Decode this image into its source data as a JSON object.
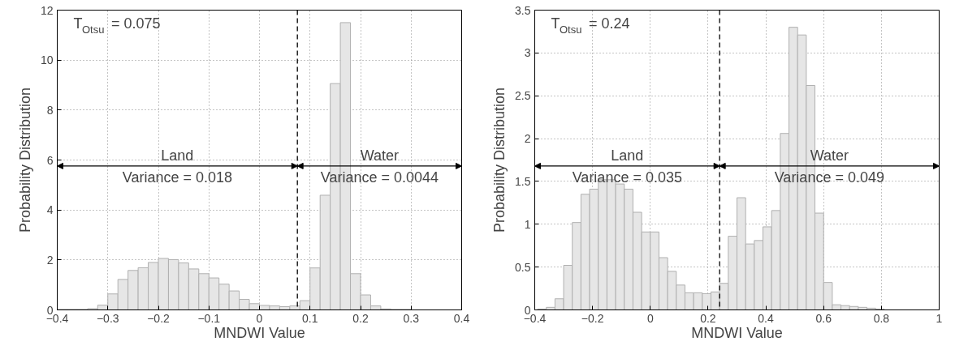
{
  "chart_data": [
    {
      "type": "histogram",
      "xlabel": "MNDWI Value",
      "ylabel": "Probability Distribution",
      "color": "#e6e6e6",
      "bins": [
        -0.4,
        -0.38,
        -0.36,
        -0.34,
        -0.32,
        -0.3,
        -0.28,
        -0.26,
        -0.24,
        -0.22,
        -0.2,
        -0.18,
        -0.16,
        -0.14,
        -0.12,
        -0.1,
        -0.08,
        -0.06,
        -0.04,
        -0.02,
        0,
        0.02,
        0.04,
        0.06,
        0.08,
        0.1,
        0.12,
        0.14,
        0.16,
        0.18,
        0.2,
        0.22,
        0.24,
        0.26,
        0.28,
        0.3
      ],
      "values": [
        0.02,
        0.02,
        0.02,
        0.05,
        0.19,
        0.64,
        1.22,
        1.58,
        1.69,
        1.9,
        2.06,
        2.01,
        1.88,
        1.64,
        1.45,
        1.28,
        1.03,
        0.76,
        0.42,
        0.25,
        0.18,
        0.16,
        0.13,
        0.16,
        0.37,
        1.68,
        4.59,
        9.06,
        11.5,
        1.45,
        0.6,
        0.16,
        0.04,
        0.02,
        0.02
      ],
      "xlim": [
        -0.4,
        0.4
      ],
      "ylim": [
        0,
        12
      ],
      "xticks": [
        {
          "value": -0.4,
          "label": "−0.4"
        },
        {
          "value": -0.3,
          "label": "−0.3"
        },
        {
          "value": -0.2,
          "label": "−0.2"
        },
        {
          "value": -0.1,
          "label": "−0.1"
        },
        0,
        0.1,
        0.2,
        0.3,
        0.4
      ],
      "yticks": [
        0,
        2,
        4,
        6,
        8,
        10,
        12
      ],
      "grid": true,
      "ref_lines": [
        {
          "axis": "x",
          "value": 0.075,
          "line_style": "dashed"
        }
      ],
      "annotations": [
        "T$_{Otsu}$ = 0.075",
        "Land",
        "Variance = 0.018",
        "Water",
        "Variance = 0.0044"
      ]
    },
    {
      "type": "histogram",
      "xlabel": "MNDWI Value",
      "ylabel": "Probability Distribution",
      "color": "#e6e6e6",
      "bins": [
        -0.39,
        -0.36,
        -0.33,
        -0.3,
        -0.27,
        -0.24,
        -0.21,
        -0.18,
        -0.15,
        -0.12,
        -0.09,
        -0.06,
        -0.03,
        0,
        0.03,
        0.06,
        0.09,
        0.12,
        0.15,
        0.18,
        0.21,
        0.24,
        0.27,
        0.3,
        0.33,
        0.36,
        0.39,
        0.42,
        0.45,
        0.48,
        0.51,
        0.54,
        0.57,
        0.6,
        0.63,
        0.66,
        0.69,
        0.72,
        0.75,
        0.78,
        0.81
      ],
      "values": [
        0.01,
        0.03,
        0.13,
        0.52,
        1.02,
        1.35,
        1.41,
        1.52,
        1.52,
        1.47,
        1.41,
        1.14,
        0.91,
        0.91,
        0.61,
        0.45,
        0.29,
        0.2,
        0.2,
        0.19,
        0.21,
        0.31,
        0.86,
        1.31,
        0.77,
        0.81,
        0.97,
        1.16,
        2.06,
        3.3,
        3.21,
        2.62,
        1.13,
        0.32,
        0.06,
        0.05,
        0.04,
        0.03,
        0.02,
        0.01
      ],
      "xlim": [
        -0.4,
        1
      ],
      "ylim": [
        0,
        3.5
      ],
      "xticks": [
        {
          "value": -0.4,
          "label": "−0.4"
        },
        {
          "value": -0.2,
          "label": "−0.2"
        },
        0,
        0.2,
        0.4,
        0.6,
        0.8,
        1
      ],
      "yticks": [
        0,
        0.5,
        1,
        1.5,
        2,
        2.5,
        3,
        3.5
      ],
      "grid": true,
      "ref_lines": [
        {
          "axis": "x",
          "value": 0.24,
          "line_style": "dashed"
        }
      ],
      "annotations": [
        "T$_{Otsu}$ = 0.24",
        "Land",
        "Variance = 0.035",
        "Water",
        "Variance = 0.049"
      ]
    }
  ]
}
